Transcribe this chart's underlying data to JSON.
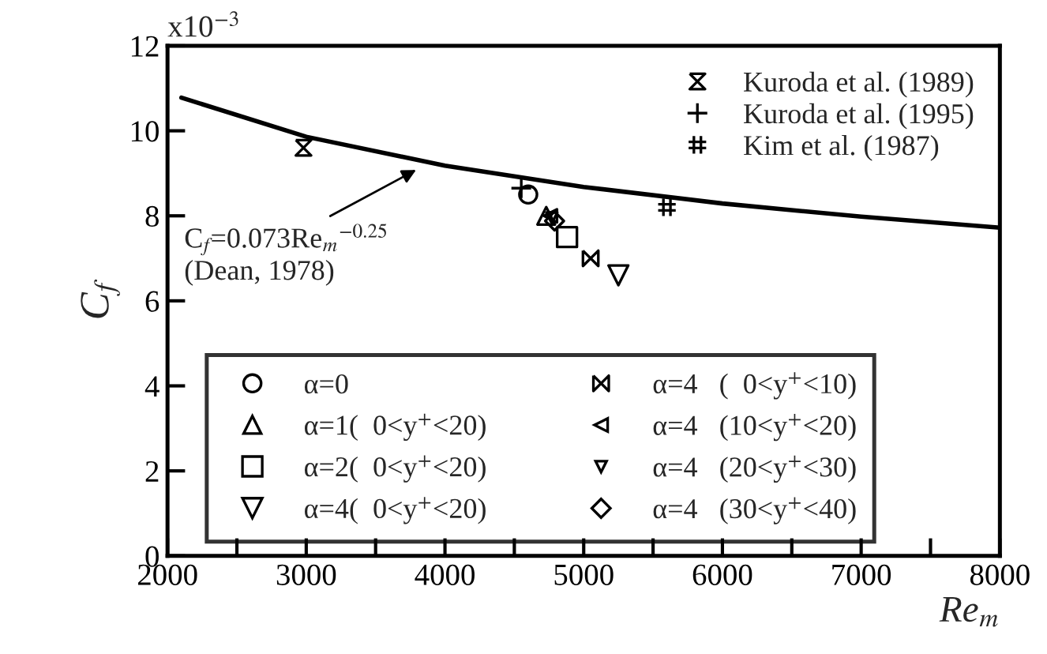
{
  "chart_data": {
    "type": "scatter",
    "xlabel": "Re$_{m}$",
    "ylabel": "C$_{f}$",
    "xlim": [
      2000,
      8000
    ],
    "ylim": [
      0,
      12
    ],
    "xticks": [
      2000,
      {
        "value": 2500,
        "label": null
      },
      3000,
      {
        "value": 3500,
        "label": null
      },
      4000,
      {
        "value": 4500,
        "label": null
      },
      5000,
      {
        "value": 5500,
        "label": null
      },
      6000,
      {
        "value": 6500,
        "label": null
      },
      7000,
      {
        "value": 7500,
        "label": null
      },
      8000
    ],
    "yticks": [
      0,
      2,
      4,
      6,
      8,
      10,
      12
    ],
    "grid": false,
    "legend": "top right",
    "series": [
      {
        "type": "line",
        "color": "#000000",
        "x": [
          2100,
          3000,
          4000,
          5000,
          6000,
          7000,
          8000
        ],
        "values": [
          10.78,
          9.86,
          9.18,
          8.68,
          8.29,
          7.98,
          7.72
        ]
      },
      {
        "name": "Kuroda et al. (1989)",
        "color": "#000000",
        "x": [
          2980
        ],
        "values": [
          9.6
        ]
      },
      {
        "name": "Kuroda et al. (1995)",
        "marker": "plus",
        "color": "#000000",
        "x": [
          4550
        ],
        "values": [
          8.65
        ]
      },
      {
        "name": "Kim et al. (1987)",
        "color": "#000000",
        "x": [
          5600
        ],
        "values": [
          8.2
        ]
      },
      {
        "name": "α=0",
        "marker": "circle",
        "color": "#000000",
        "x": [
          4600
        ],
        "values": [
          8.5
        ]
      },
      {
        "name": "α=1(  0<y$^{+}$<20)",
        "marker": "triangle",
        "color": "#000000",
        "x": [
          4730
        ],
        "values": [
          8.0
        ]
      },
      {
        "name": "α=2(  0<y$^{+}$<20)",
        "marker": "square",
        "color": "#000000",
        "x": [
          4880
        ],
        "values": [
          7.5
        ]
      },
      {
        "name": "α=4(  0<y$^{+}$<20)",
        "marker": "triangle_down",
        "color": "#000000",
        "x": [
          5250
        ],
        "values": [
          6.6
        ]
      },
      {
        "name": "α=4   (  0<y$^{+}$<10)",
        "color": "#000000",
        "x": [
          5050
        ],
        "values": [
          7.0
        ]
      },
      {
        "name": "α=4   (10<y$^{+}$<20)",
        "marker": "triangle_left",
        "color": "#000000",
        "x": [
          4760
        ],
        "values": [
          8.0
        ]
      },
      {
        "name": "α=4   (20<y$^{+}$<30)",
        "marker": "triangle_down_small",
        "color": "#000000",
        "x": [
          4770
        ],
        "values": [
          7.95
        ]
      },
      {
        "name": "α=4   (30<y$^{+}$<40)",
        "marker": "diamond",
        "color": "#000000",
        "x": [
          4790
        ],
        "values": [
          7.88
        ]
      }
    ],
    "annotations": [
      {
        "text": "C$_{f}$=0.073Re$_{m}$$^{−0.25}$",
        "x": 3820,
        "y": 9.13
      },
      "(Dean, 1978)",
      "x10$^{−3}$"
    ]
  }
}
